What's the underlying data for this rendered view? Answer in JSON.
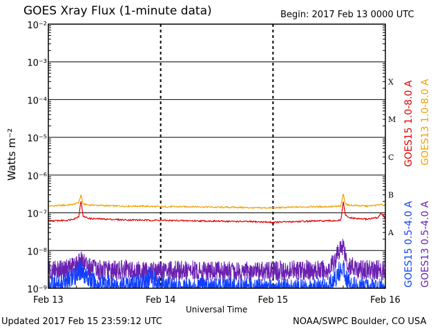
{
  "title": "GOES Xray Flux (1-minute data)",
  "begin": "Begin:  2017 Feb 13 0000 UTC",
  "updated": "Updated 2017 Feb 15 23:59:12 UTC",
  "credit": "NOAA/SWPC Boulder, CO USA",
  "chart_data": {
    "type": "line",
    "title": "GOES Xray Flux (1-minute data)",
    "xlabel": "Universal Time",
    "ylabel": "Watts m⁻²",
    "y_scale": "log",
    "ylim": [
      1e-09,
      0.01
    ],
    "xlim": [
      0,
      72
    ],
    "x_units": "hours since 2017 Feb 13 0000 UTC",
    "x_ticks": [
      {
        "x": 0,
        "label": "Feb 13"
      },
      {
        "x": 24,
        "label": "Feb 14"
      },
      {
        "x": 48,
        "label": "Feb 15"
      },
      {
        "x": 72,
        "label": "Feb 16"
      }
    ],
    "y_ticks": [
      {
        "exp": -2,
        "label": "10⁻²"
      },
      {
        "exp": -3,
        "label": "10⁻³"
      },
      {
        "exp": -4,
        "label": "10⁻⁴"
      },
      {
        "exp": -5,
        "label": "10⁻⁵"
      },
      {
        "exp": -6,
        "label": "10⁻⁶"
      },
      {
        "exp": -7,
        "label": "10⁻⁷"
      },
      {
        "exp": -8,
        "label": "10⁻⁸"
      },
      {
        "exp": -9,
        "label": "10⁻⁹"
      }
    ],
    "flare_classes": [
      {
        "label": "X",
        "value": 0.0003
      },
      {
        "label": "M",
        "value": 3e-05
      },
      {
        "label": "C",
        "value": 3e-06
      },
      {
        "label": "B",
        "value": 3e-07
      },
      {
        "label": "A",
        "value": 3e-08
      }
    ],
    "grid": true,
    "series": [
      {
        "name": "GOES13 1.0-8.0 A",
        "color": "#f0a000",
        "points": [
          [
            0,
            1.5e-07
          ],
          [
            2,
            1.55e-07
          ],
          [
            4,
            1.6e-07
          ],
          [
            5.6,
            1.7e-07
          ],
          [
            6.5,
            1.9e-07
          ],
          [
            7,
            3e-07
          ],
          [
            7.4,
            1.7e-07
          ],
          [
            9,
            1.6e-07
          ],
          [
            12,
            1.55e-07
          ],
          [
            16,
            1.5e-07
          ],
          [
            20,
            1.5e-07
          ],
          [
            24,
            1.45e-07
          ],
          [
            28,
            1.45e-07
          ],
          [
            32,
            1.45e-07
          ],
          [
            36,
            1.4e-07
          ],
          [
            40,
            1.4e-07
          ],
          [
            44,
            1.35e-07
          ],
          [
            48,
            1.35e-07
          ],
          [
            52,
            1.4e-07
          ],
          [
            56,
            1.45e-07
          ],
          [
            60,
            1.45e-07
          ],
          [
            62.5,
            1.5e-07
          ],
          [
            63,
            3.2e-07
          ],
          [
            63.4,
            1.8e-07
          ],
          [
            64,
            1.6e-07
          ],
          [
            66,
            1.55e-07
          ],
          [
            68,
            1.5e-07
          ],
          [
            70.5,
            1.6e-07
          ],
          [
            71,
            1.7e-07
          ],
          [
            72,
            1.55e-07
          ]
        ]
      },
      {
        "name": "GOES15 1.0-8.0 A",
        "color": "#e00000",
        "points": [
          [
            0,
            6e-08
          ],
          [
            2,
            6.2e-08
          ],
          [
            4,
            6.3e-08
          ],
          [
            5.6,
            7e-08
          ],
          [
            6.5,
            8e-08
          ],
          [
            7,
            2.2e-07
          ],
          [
            7.4,
            8e-08
          ],
          [
            9,
            7e-08
          ],
          [
            12,
            6.8e-08
          ],
          [
            16,
            6.5e-08
          ],
          [
            20,
            6.4e-08
          ],
          [
            24,
            6.3e-08
          ],
          [
            28,
            6.2e-08
          ],
          [
            32,
            6.1e-08
          ],
          [
            36,
            6e-08
          ],
          [
            40,
            5.9e-08
          ],
          [
            44,
            5.8e-08
          ],
          [
            48,
            5.6e-08
          ],
          [
            52,
            5.8e-08
          ],
          [
            56,
            6e-08
          ],
          [
            60,
            6.1e-08
          ],
          [
            62.5,
            6.3e-08
          ],
          [
            63,
            2e-07
          ],
          [
            63.4,
            9e-08
          ],
          [
            64,
            7.5e-08
          ],
          [
            66,
            7e-08
          ],
          [
            68,
            6.8e-08
          ],
          [
            70.5,
            7.5e-08
          ],
          [
            71,
            1e-07
          ],
          [
            72,
            7e-08
          ]
        ]
      },
      {
        "name": "GOES13 0.5-4.0 A",
        "color": "#6a20b0",
        "points": [
          [
            0,
            3e-09
          ],
          [
            4,
            3.2e-09
          ],
          [
            7,
            5e-09
          ],
          [
            10,
            3e-09
          ],
          [
            16,
            3e-09
          ],
          [
            20,
            2.8e-09
          ],
          [
            24,
            2.8e-09
          ],
          [
            30,
            2.9e-09
          ],
          [
            36,
            2.8e-09
          ],
          [
            42,
            2.7e-09
          ],
          [
            48,
            2.8e-09
          ],
          [
            54,
            3e-09
          ],
          [
            60,
            3e-09
          ],
          [
            63,
            1.5e-08
          ],
          [
            64,
            4e-09
          ],
          [
            66,
            3.2e-09
          ],
          [
            70,
            3e-09
          ],
          [
            72,
            3e-09
          ]
        ]
      },
      {
        "name": "GOES15 0.5-4.0 A",
        "color": "#1040ff",
        "points": [
          [
            0,
            1.2e-09
          ],
          [
            4,
            1.5e-09
          ],
          [
            7,
            3e-09
          ],
          [
            10,
            1.3e-09
          ],
          [
            16,
            1.2e-09
          ],
          [
            20,
            1.3e-09
          ],
          [
            22,
            2e-09
          ],
          [
            24,
            1.1e-09
          ],
          [
            30,
            1e-09
          ],
          [
            36,
            1e-09
          ],
          [
            42,
            1e-09
          ],
          [
            48,
            1e-09
          ],
          [
            54,
            1e-09
          ],
          [
            60,
            1.1e-09
          ],
          [
            63,
            4e-09
          ],
          [
            64,
            1.5e-09
          ],
          [
            66,
            1.1e-09
          ],
          [
            70,
            1e-09
          ],
          [
            72,
            1e-09
          ]
        ]
      }
    ]
  }
}
